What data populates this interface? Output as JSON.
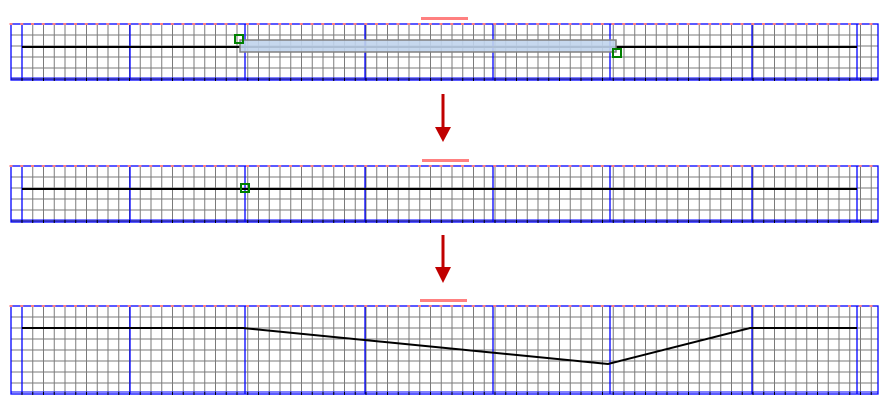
{
  "colors": {
    "grid": "#7a7a7a",
    "major_grid": "#0000ff",
    "ruler_marks": "#ff8080",
    "curve": "#000000",
    "selection_fill": "#c0d4ec",
    "selection_border": "#808080",
    "handle": "#008000",
    "arrow": "#c00000"
  },
  "panels": [
    {
      "name": "selection-step"
    },
    {
      "name": "point-step"
    },
    {
      "name": "result-step"
    }
  ]
}
